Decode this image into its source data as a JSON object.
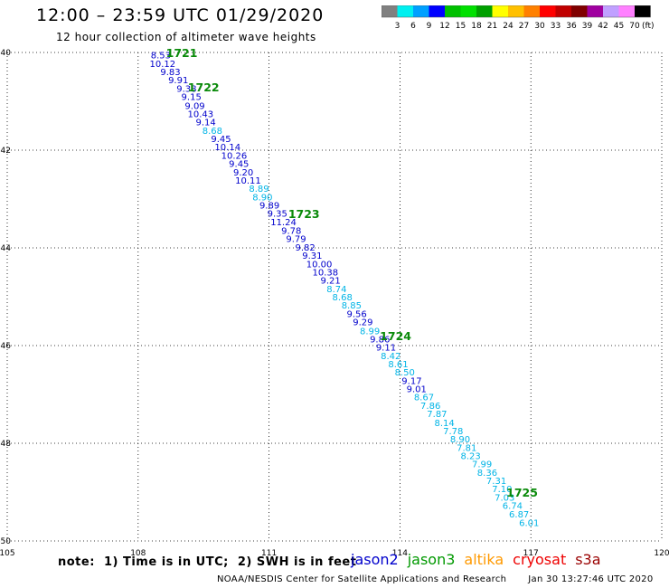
{
  "title": "12:00 – 23:59 UTC 01/29/2020",
  "subtitle": "12 hour collection of altimeter wave heights",
  "legend": {
    "unit": "(ft)",
    "colors": [
      "#808080",
      "#00f0f0",
      "#00a0ff",
      "#0000ff",
      "#00c000",
      "#00e000",
      "#00a000",
      "#ffff00",
      "#ffc000",
      "#ff8000",
      "#ff0000",
      "#c00000",
      "#800000",
      "#a000a0",
      "#c0a0ff",
      "#ff80ff",
      "#000000"
    ],
    "labels": [
      "3",
      "6",
      "9",
      "12",
      "15",
      "18",
      "21",
      "24",
      "27",
      "30",
      "33",
      "36",
      "39",
      "42",
      "45",
      "70"
    ]
  },
  "note": "note:  1) Time is in UTC;  2) SWH is in feet",
  "missions": [
    {
      "name": "jason2",
      "color": "#0000cc"
    },
    {
      "name": "jason3",
      "color": "#009900"
    },
    {
      "name": "altika",
      "color": "#ff9900"
    },
    {
      "name": "cryosat",
      "color": "#ee0000"
    },
    {
      "name": "s3a",
      "color": "#990000"
    }
  ],
  "credit": "NOAA/NESDIS Center for Satellite Applications and Research",
  "timestamp": "Jan 30 13:27:46 UTC 2020",
  "chart_data": {
    "type": "scatter",
    "xlim": [
      105,
      120
    ],
    "ylim": [
      -50,
      -40
    ],
    "x_ticks": [
      105,
      108,
      111,
      114,
      117,
      120
    ],
    "y_ticks": [
      -40,
      -42,
      -44,
      -46,
      -48,
      -50
    ],
    "x_tick_labels": [
      "105",
      "108",
      "111",
      "114",
      "117",
      "120"
    ],
    "y_tick_labels": [
      "-40",
      "-42",
      "-44",
      "-46",
      "-48",
      "-50"
    ],
    "grid": true,
    "points": [
      {
        "lon": 108.52,
        "lat": -40.05,
        "swh": "8.53",
        "c": "#0000cc"
      },
      {
        "lon": 108.56,
        "lat": -40.22,
        "swh": "10.12",
        "c": "#0000cc"
      },
      {
        "lon": 108.74,
        "lat": -40.39,
        "swh": "9.83",
        "c": "#0000cc"
      },
      {
        "lon": 108.92,
        "lat": -40.56,
        "swh": "9.91",
        "c": "#0000cc"
      },
      {
        "lon": 109.11,
        "lat": -40.73,
        "swh": "9.38",
        "c": "#0000cc"
      },
      {
        "lon": 109.22,
        "lat": -40.9,
        "swh": "9.15",
        "c": "#0000cc"
      },
      {
        "lon": 109.3,
        "lat": -41.08,
        "swh": "9.09",
        "c": "#0000cc"
      },
      {
        "lon": 109.43,
        "lat": -41.25,
        "swh": "10.43",
        "c": "#0000cc"
      },
      {
        "lon": 109.55,
        "lat": -41.42,
        "swh": "9.14",
        "c": "#0000cc"
      },
      {
        "lon": 109.7,
        "lat": -41.59,
        "swh": "8.68",
        "c": "#00b4e6"
      },
      {
        "lon": 109.9,
        "lat": -41.76,
        "swh": "9.45",
        "c": "#0000cc"
      },
      {
        "lon": 110.05,
        "lat": -41.93,
        "swh": "10.14",
        "c": "#0000cc"
      },
      {
        "lon": 110.2,
        "lat": -42.1,
        "swh": "10.26",
        "c": "#0000cc"
      },
      {
        "lon": 110.31,
        "lat": -42.27,
        "swh": "9.45",
        "c": "#0000cc"
      },
      {
        "lon": 110.41,
        "lat": -42.44,
        "swh": "9.20",
        "c": "#0000cc"
      },
      {
        "lon": 110.52,
        "lat": -42.61,
        "swh": "10.11",
        "c": "#0000cc"
      },
      {
        "lon": 110.77,
        "lat": -42.78,
        "swh": "8.89",
        "c": "#00b4e6"
      },
      {
        "lon": 110.85,
        "lat": -42.95,
        "swh": "8.90",
        "c": "#00b4e6"
      },
      {
        "lon": 111.01,
        "lat": -43.12,
        "swh": "9.89",
        "c": "#0000cc"
      },
      {
        "lon": 111.19,
        "lat": -43.29,
        "swh": "9.35",
        "c": "#0000cc"
      },
      {
        "lon": 111.33,
        "lat": -43.46,
        "swh": "11.24",
        "c": "#0000cc"
      },
      {
        "lon": 111.51,
        "lat": -43.64,
        "swh": "9.78",
        "c": "#0000cc"
      },
      {
        "lon": 111.62,
        "lat": -43.81,
        "swh": "9.79",
        "c": "#0000cc"
      },
      {
        "lon": 111.83,
        "lat": -43.98,
        "swh": "9.82",
        "c": "#0000cc"
      },
      {
        "lon": 111.99,
        "lat": -44.15,
        "swh": "9.31",
        "c": "#0000cc"
      },
      {
        "lon": 112.15,
        "lat": -44.32,
        "swh": "10.00",
        "c": "#0000cc"
      },
      {
        "lon": 112.29,
        "lat": -44.49,
        "swh": "10.38",
        "c": "#0000cc"
      },
      {
        "lon": 112.41,
        "lat": -44.66,
        "swh": "9.21",
        "c": "#0000cc"
      },
      {
        "lon": 112.55,
        "lat": -44.83,
        "swh": "8.74",
        "c": "#00b4e6"
      },
      {
        "lon": 112.68,
        "lat": -45.0,
        "swh": "8.68",
        "c": "#00b4e6"
      },
      {
        "lon": 112.89,
        "lat": -45.17,
        "swh": "8.85",
        "c": "#00b4e6"
      },
      {
        "lon": 113.01,
        "lat": -45.34,
        "swh": "9.56",
        "c": "#0000cc"
      },
      {
        "lon": 113.15,
        "lat": -45.51,
        "swh": "9.29",
        "c": "#0000cc"
      },
      {
        "lon": 113.31,
        "lat": -45.69,
        "swh": "8.99",
        "c": "#00b4e6"
      },
      {
        "lon": 113.54,
        "lat": -45.86,
        "swh": "9.86",
        "c": "#0000cc"
      },
      {
        "lon": 113.68,
        "lat": -46.03,
        "swh": "9.11",
        "c": "#0000cc"
      },
      {
        "lon": 113.79,
        "lat": -46.2,
        "swh": "8.42",
        "c": "#00b4e6"
      },
      {
        "lon": 113.96,
        "lat": -46.37,
        "swh": "8.61",
        "c": "#00b4e6"
      },
      {
        "lon": 114.11,
        "lat": -46.54,
        "swh": "8.50",
        "c": "#00b4e6"
      },
      {
        "lon": 114.27,
        "lat": -46.71,
        "swh": "9.17",
        "c": "#0000cc"
      },
      {
        "lon": 114.38,
        "lat": -46.88,
        "swh": "9.01",
        "c": "#0000cc"
      },
      {
        "lon": 114.55,
        "lat": -47.05,
        "swh": "8.67",
        "c": "#00b4e6"
      },
      {
        "lon": 114.7,
        "lat": -47.22,
        "swh": "7.86",
        "c": "#00b4e6"
      },
      {
        "lon": 114.85,
        "lat": -47.39,
        "swh": "7.87",
        "c": "#00b4e6"
      },
      {
        "lon": 115.02,
        "lat": -47.57,
        "swh": "8.14",
        "c": "#00b4e6"
      },
      {
        "lon": 115.22,
        "lat": -47.74,
        "swh": "7.78",
        "c": "#00b4e6"
      },
      {
        "lon": 115.38,
        "lat": -47.91,
        "swh": "8.90",
        "c": "#00b4e6"
      },
      {
        "lon": 115.53,
        "lat": -48.08,
        "swh": "7.81",
        "c": "#00b4e6"
      },
      {
        "lon": 115.62,
        "lat": -48.25,
        "swh": "8.23",
        "c": "#00b4e6"
      },
      {
        "lon": 115.88,
        "lat": -48.42,
        "swh": "7.99",
        "c": "#00b4e6"
      },
      {
        "lon": 116.0,
        "lat": -48.59,
        "swh": "8.36",
        "c": "#00b4e6"
      },
      {
        "lon": 116.21,
        "lat": -48.76,
        "swh": "7.31",
        "c": "#00b4e6"
      },
      {
        "lon": 116.34,
        "lat": -48.93,
        "swh": "7.10",
        "c": "#00b4e6"
      },
      {
        "lon": 116.4,
        "lat": -49.1,
        "swh": "7.03",
        "c": "#00b4e6"
      },
      {
        "lon": 116.58,
        "lat": -49.27,
        "swh": "6.74",
        "c": "#00b4e6"
      },
      {
        "lon": 116.73,
        "lat": -49.44,
        "swh": "6.87",
        "c": "#00b4e6"
      },
      {
        "lon": 116.96,
        "lat": -49.62,
        "swh": "6.01",
        "c": "#00b4e6"
      }
    ],
    "pass_labels": [
      {
        "text": "1721",
        "lon": 109.0,
        "lat": -40.0
      },
      {
        "text": "1722",
        "lon": 109.5,
        "lat": -40.7
      },
      {
        "text": "1723",
        "lon": 111.8,
        "lat": -43.3
      },
      {
        "text": "1724",
        "lon": 113.9,
        "lat": -45.8
      },
      {
        "text": "1725",
        "lon": 116.8,
        "lat": -49.0
      }
    ]
  }
}
